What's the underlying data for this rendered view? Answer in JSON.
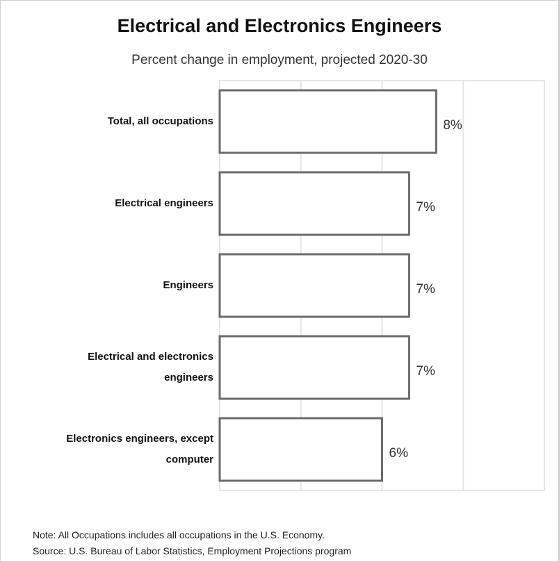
{
  "chart_data": {
    "type": "bar",
    "orientation": "horizontal",
    "title": "Electrical and Electronics Engineers",
    "subtitle": "Percent change in employment, projected 2020-30",
    "categories": [
      "Total, all occupations",
      "Electrical engineers",
      "Engineers",
      "Electrical and electronics engineers",
      "Electronics engineers, except computer"
    ],
    "values": [
      8,
      7,
      7,
      7,
      6
    ],
    "value_labels": [
      "8%",
      "7%",
      "7%",
      "7%",
      "6%"
    ],
    "xlim": [
      0,
      12
    ],
    "grid": true,
    "bar_fill": "#ffffff",
    "bar_stroke": "#6b6b6b",
    "grid_color": "#e6e6e6"
  },
  "footer": {
    "note": "Note: All Occupations includes all occupations in the U.S. Economy.",
    "source": "Source: U.S. Bureau of Labor Statistics, Employment Projections program"
  }
}
